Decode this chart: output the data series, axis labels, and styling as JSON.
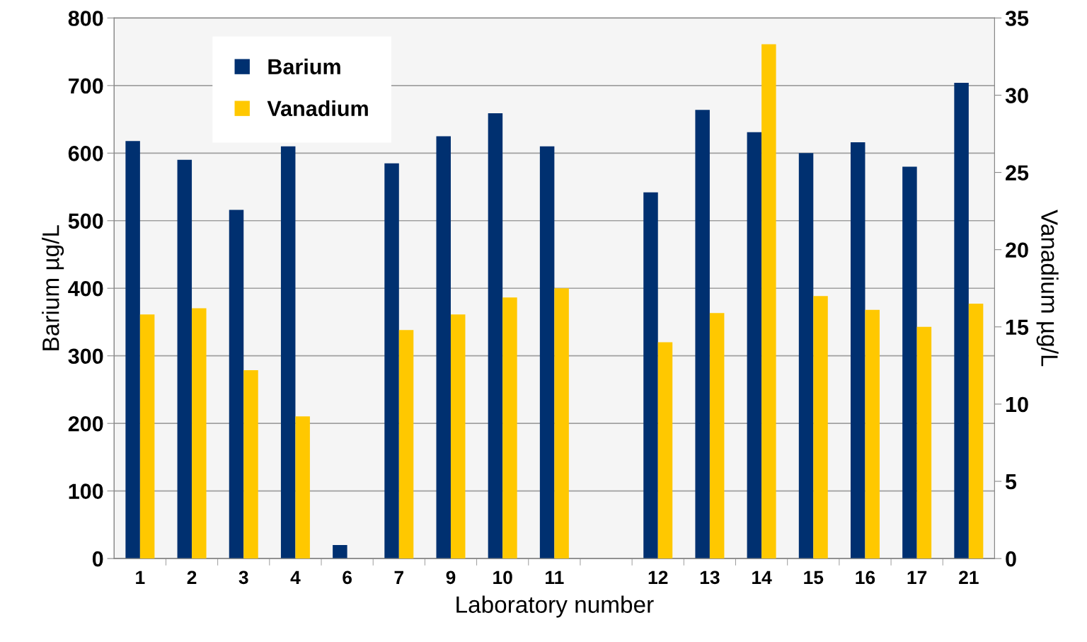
{
  "chart_data": {
    "type": "bar",
    "xlabel": "Laboratory number",
    "ylabel": "Barium µg/L",
    "y2label": "Vanadium µg/L",
    "categories": [
      "1",
      "2",
      "3",
      "4",
      "6",
      "7",
      "9",
      "10",
      "11",
      null,
      "12",
      "13",
      "14",
      "15",
      "16",
      "17",
      "21"
    ],
    "series": [
      {
        "name": "Barium",
        "color": "#003070",
        "values": [
          618,
          590,
          516,
          610,
          20,
          585,
          625,
          659,
          610,
          null,
          542,
          664,
          631,
          600,
          616,
          580,
          704
        ]
      },
      {
        "name": "Vanadium",
        "color": "#ffc800",
        "axis": "y2",
        "values": [
          15.8,
          16.2,
          12.2,
          9.2,
          null,
          14.8,
          15.8,
          16.9,
          17.5,
          null,
          14.0,
          15.9,
          33.3,
          17.0,
          16.1,
          15.0,
          16.5
        ]
      }
    ],
    "ylim": [
      0,
      800
    ],
    "yticks": [
      0,
      100,
      200,
      300,
      400,
      500,
      600,
      700,
      800
    ],
    "y2lim": [
      0,
      35
    ],
    "y2ticks": [
      0,
      5,
      10,
      15,
      20,
      25,
      30,
      35
    ],
    "grid": "y",
    "legend": "top left"
  }
}
